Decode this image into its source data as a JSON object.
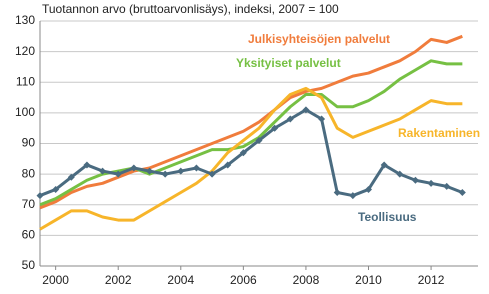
{
  "chart_data": {
    "type": "line",
    "title": "Tuotannon arvo (bruttoarvonlisäys), indeksi, 2007 = 100",
    "x": [
      1999.5,
      2000,
      2000.5,
      2001,
      2001.5,
      2002,
      2002.5,
      2003,
      2003.5,
      2004,
      2004.5,
      2005,
      2005.5,
      2006,
      2006.5,
      2007,
      2007.5,
      2008,
      2008.5,
      2009,
      2009.5,
      2010,
      2010.5,
      2011,
      2011.5,
      2012,
      2012.5,
      2013
    ],
    "xlim": [
      1999.5,
      2013.5
    ],
    "xticks": [
      2000,
      2002,
      2004,
      2006,
      2008,
      2010,
      2012
    ],
    "ylim": [
      50,
      130
    ],
    "yticks": [
      50,
      60,
      70,
      80,
      90,
      100,
      110,
      120,
      130
    ],
    "grid": true,
    "series": [
      {
        "name": "Julkisyhteisöjen palvelut",
        "color": "#f07c3c",
        "values": [
          69,
          71,
          74,
          76,
          77,
          79,
          81,
          82,
          84,
          86,
          88,
          90,
          92,
          94,
          97,
          101,
          105,
          107,
          108,
          110,
          112,
          113,
          115,
          117,
          120,
          124,
          123,
          125
        ]
      },
      {
        "name": "Yksityiset palvelut",
        "color": "#76c043",
        "values": [
          70,
          72,
          75,
          78,
          80,
          81,
          82,
          80,
          82,
          84,
          86,
          88,
          88,
          89,
          92,
          97,
          102,
          106,
          106,
          102,
          102,
          104,
          107,
          111,
          114,
          117,
          116,
          116
        ]
      },
      {
        "name": "Rakentaminen",
        "color": "#f7b52a",
        "values": [
          62,
          65,
          68,
          68,
          66,
          65,
          65,
          68,
          71,
          74,
          77,
          81,
          87,
          91,
          95,
          101,
          106,
          108,
          105,
          95,
          92,
          94,
          96,
          98,
          101,
          104,
          103,
          103
        ]
      },
      {
        "name": "Teollisuus",
        "color": "#4a6b80",
        "values": [
          73,
          75,
          79,
          83,
          81,
          80,
          82,
          81,
          80,
          81,
          82,
          80,
          83,
          87,
          91,
          95,
          98,
          101,
          98,
          74,
          73,
          75,
          83,
          80,
          78,
          77,
          76,
          74
        ]
      }
    ]
  }
}
